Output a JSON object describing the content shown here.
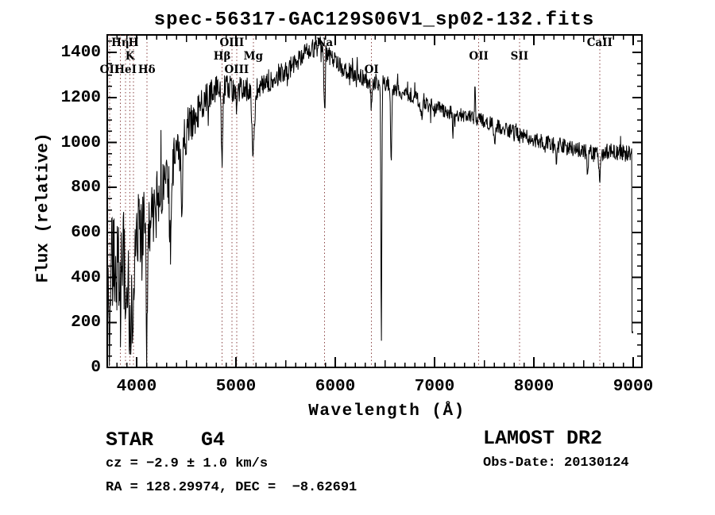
{
  "title": "spec-56317-GAC129S06V1_sp02-132.fits",
  "axes": {
    "x": {
      "label": "Wavelength (Å)",
      "tick_labels": [
        "4000",
        "5000",
        "6000",
        "7000",
        "8000",
        "9000"
      ],
      "tick_values": [
        4000,
        5000,
        6000,
        7000,
        8000,
        9000
      ],
      "minor_step": 100,
      "medium_step": 500
    },
    "y": {
      "label": "Flux (relative)",
      "tick_labels": [
        "0",
        "200",
        "400",
        "600",
        "800",
        "1000",
        "1200",
        "1400"
      ],
      "tick_values": [
        0,
        200,
        400,
        600,
        800,
        1000,
        1200,
        1400
      ],
      "minor_step": 50
    }
  },
  "annotations": {
    "class_line": "STAR    G4",
    "cz_line": "cz = −2.9 ± 1.0 km/s",
    "radec_line": "RA = 128.29974, DEC =  −8.62691",
    "survey": "LAMOST DR2",
    "obsdate_line": "Obs-Date: 20130124"
  },
  "colors": {
    "background": "#ffffff",
    "spectrum": "#000000",
    "axis": "#000000",
    "marker_line": "#8b4646",
    "text": "#000000"
  },
  "chart_data": {
    "type": "line",
    "title": "spec-56317-GAC129S06V1_sp02-132.fits",
    "xlabel": "Wavelength (Å)",
    "ylabel": "Flux (relative)",
    "xlim": [
      3704,
      9088
    ],
    "ylim": [
      0,
      1478
    ],
    "grid": false,
    "legend": "none",
    "x_ticks": [
      4000,
      5000,
      6000,
      7000,
      8000,
      9000
    ],
    "y_ticks": [
      0,
      200,
      400,
      600,
      800,
      1000,
      1200,
      1400
    ],
    "line_markers": [
      {
        "wavelength": 3727,
        "label": "OII",
        "row": 3
      },
      {
        "wavelength": 3835,
        "label": "Hη",
        "row": 1
      },
      {
        "wavelength": 3889,
        "label": "HeI",
        "row": 3
      },
      {
        "wavelength": 3933,
        "label": "K",
        "row": 2
      },
      {
        "wavelength": 3968,
        "label": "H",
        "row": 1
      },
      {
        "wavelength": 4102,
        "label": "Hδ",
        "row": 3
      },
      {
        "wavelength": 4861,
        "label": "Hβ",
        "row": 2
      },
      {
        "wavelength": 4959,
        "label": "OIII",
        "row": 1
      },
      {
        "wavelength": 5007,
        "label": "OIII",
        "row": 3
      },
      {
        "wavelength": 5175,
        "label": "Mg",
        "row": 2
      },
      {
        "wavelength": 5893,
        "label": "Na",
        "row": 1
      },
      {
        "wavelength": 6365,
        "label": "OI",
        "row": 3
      },
      {
        "wavelength": 7445,
        "label": "OII",
        "row": 2
      },
      {
        "wavelength": 7855,
        "label": "SII",
        "row": 2
      },
      {
        "wavelength": 8662,
        "label": "CaII",
        "row": 1
      }
    ],
    "series_name": "flux",
    "continuum_points": [
      [
        3704,
        260
      ],
      [
        3725,
        300
      ],
      [
        3745,
        430
      ],
      [
        3775,
        480
      ],
      [
        3820,
        545
      ],
      [
        3870,
        565
      ],
      [
        3920,
        545
      ],
      [
        3960,
        535
      ],
      [
        4000,
        570
      ],
      [
        4060,
        630
      ],
      [
        4120,
        650
      ],
      [
        4180,
        700
      ],
      [
        4260,
        790
      ],
      [
        4340,
        870
      ],
      [
        4420,
        960
      ],
      [
        4500,
        1045
      ],
      [
        4580,
        1115
      ],
      [
        4660,
        1170
      ],
      [
        4740,
        1210
      ],
      [
        4820,
        1235
      ],
      [
        4900,
        1245
      ],
      [
        4980,
        1235
      ],
      [
        5060,
        1235
      ],
      [
        5140,
        1240
      ],
      [
        5220,
        1235
      ],
      [
        5300,
        1265
      ],
      [
        5400,
        1295
      ],
      [
        5500,
        1320
      ],
      [
        5600,
        1355
      ],
      [
        5700,
        1395
      ],
      [
        5800,
        1420
      ],
      [
        5870,
        1430
      ],
      [
        5940,
        1390
      ],
      [
        6020,
        1350
      ],
      [
        6100,
        1325
      ],
      [
        6180,
        1305
      ],
      [
        6260,
        1290
      ],
      [
        6340,
        1275
      ],
      [
        6420,
        1268
      ],
      [
        6500,
        1262
      ],
      [
        6580,
        1250
      ],
      [
        6660,
        1232
      ],
      [
        6740,
        1215
      ],
      [
        6860,
        1185
      ],
      [
        6980,
        1158
      ],
      [
        7100,
        1140
      ],
      [
        7220,
        1128
      ],
      [
        7340,
        1118
      ],
      [
        7460,
        1098
      ],
      [
        7580,
        1080
      ],
      [
        7700,
        1060
      ],
      [
        7820,
        1042
      ],
      [
        7940,
        1022
      ],
      [
        8060,
        1005
      ],
      [
        8180,
        995
      ],
      [
        8300,
        982
      ],
      [
        8420,
        972
      ],
      [
        8540,
        958
      ],
      [
        8640,
        950
      ],
      [
        8740,
        962
      ],
      [
        8840,
        958
      ],
      [
        8940,
        952
      ],
      [
        9088,
        945
      ]
    ],
    "noise_amplitude_points": [
      [
        3704,
        265
      ],
      [
        3780,
        240
      ],
      [
        3860,
        220
      ],
      [
        3940,
        205
      ],
      [
        4020,
        190
      ],
      [
        4100,
        175
      ],
      [
        4180,
        160
      ],
      [
        4260,
        148
      ],
      [
        4340,
        135
      ],
      [
        4430,
        115
      ],
      [
        4520,
        100
      ],
      [
        4620,
        85
      ],
      [
        4730,
        72
      ],
      [
        4850,
        62
      ],
      [
        5000,
        58
      ],
      [
        5200,
        54
      ],
      [
        5450,
        50
      ],
      [
        5700,
        47
      ],
      [
        5950,
        44
      ],
      [
        6200,
        41
      ],
      [
        6450,
        39
      ],
      [
        6700,
        37
      ],
      [
        6950,
        35
      ],
      [
        7200,
        34
      ],
      [
        7450,
        34
      ],
      [
        7700,
        33
      ],
      [
        7950,
        33
      ],
      [
        8200,
        34
      ],
      [
        8450,
        36
      ],
      [
        8700,
        38
      ],
      [
        8950,
        40
      ]
    ],
    "features": [
      {
        "center": 3727,
        "amplitude": -160,
        "sigma": 9
      },
      {
        "center": 3798,
        "amplitude": -180,
        "sigma": 8
      },
      {
        "center": 3835,
        "amplitude": -265,
        "sigma": 10
      },
      {
        "center": 3889,
        "amplitude": -250,
        "sigma": 10
      },
      {
        "center": 3933,
        "amplitude": -390,
        "sigma": 11
      },
      {
        "center": 3968,
        "amplitude": -360,
        "sigma": 11
      },
      {
        "center": 4102,
        "amplitude": -470,
        "sigma": 9
      },
      {
        "center": 4340,
        "amplitude": -300,
        "sigma": 9
      },
      {
        "center": 4455,
        "amplitude": -430,
        "sigma": 5
      },
      {
        "center": 4861,
        "amplitude": -325,
        "sigma": 8
      },
      {
        "center": 5007,
        "amplitude": -60,
        "sigma": 6
      },
      {
        "center": 5175,
        "amplitude": -275,
        "sigma": 13
      },
      {
        "center": 5893,
        "amplitude": -285,
        "sigma": 7
      },
      {
        "center": 6365,
        "amplitude": -135,
        "sigma": 6
      },
      {
        "center": 6464,
        "amplitude": -1175,
        "sigma": 4.5
      },
      {
        "center": 6563,
        "amplitude": -345,
        "sigma": 6
      },
      {
        "center": 6867,
        "amplitude": -80,
        "sigma": 8
      },
      {
        "center": 7186,
        "amplitude": -70,
        "sigma": 7
      },
      {
        "center": 7408,
        "amplitude": 155,
        "sigma": 3.5
      },
      {
        "center": 7605,
        "amplitude": -60,
        "sigma": 7
      },
      {
        "center": 8227,
        "amplitude": -60,
        "sigma": 6
      },
      {
        "center": 8542,
        "amplitude": -95,
        "sigma": 7
      },
      {
        "center": 8662,
        "amplitude": -105,
        "sigma": 7
      }
    ],
    "end_drop": {
      "start_wavelength": 8988,
      "base_flux": 110
    },
    "sampling": {
      "start": 3705,
      "end": 9000,
      "step": 4
    },
    "noise": {
      "seed": 987654321,
      "spike_probability": 0.05,
      "spike_multiplier": 2.2
    }
  }
}
